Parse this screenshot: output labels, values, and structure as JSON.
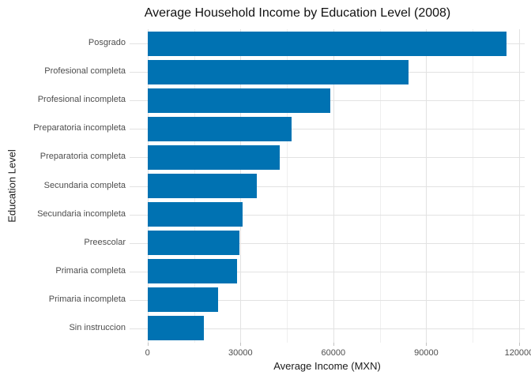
{
  "chart_data": {
    "type": "bar",
    "orientation": "horizontal",
    "title": "Average Household Income by Education Level (2008)",
    "xlabel": "Average Income (MXN)",
    "ylabel": "Education Level",
    "categories": [
      "Posgrado",
      "Profesional completa",
      "Profesional incompleta",
      "Preparatoria incompleta",
      "Preparatoria completa",
      "Secundaria completa",
      "Secundaria incompleta",
      "Preescolar",
      "Primaria completa",
      "Primaria incompleta",
      "Sin instruccion"
    ],
    "values": [
      116000,
      84300,
      59100,
      46600,
      42600,
      35200,
      30800,
      29800,
      28900,
      22900,
      18300
    ],
    "x_ticks": [
      0,
      30000,
      60000,
      90000,
      120000
    ],
    "x_tick_labels": [
      "0",
      "30000",
      "60000",
      "90000",
      "120000"
    ],
    "x_minor_ticks": [
      15000,
      45000,
      75000,
      105000
    ],
    "xlim": [
      -5800,
      121800
    ],
    "grid": true,
    "legend": "none",
    "bar_color": "#0072B2",
    "colors": {
      "background": "#ffffff",
      "grid_major": "#e2e2e2",
      "grid_minor": "#efefef",
      "tick": "#c2c2c2",
      "axis_text": "#4d4d4d",
      "axis_title_text": "#1a1a1a",
      "title_text": "#111111"
    }
  }
}
